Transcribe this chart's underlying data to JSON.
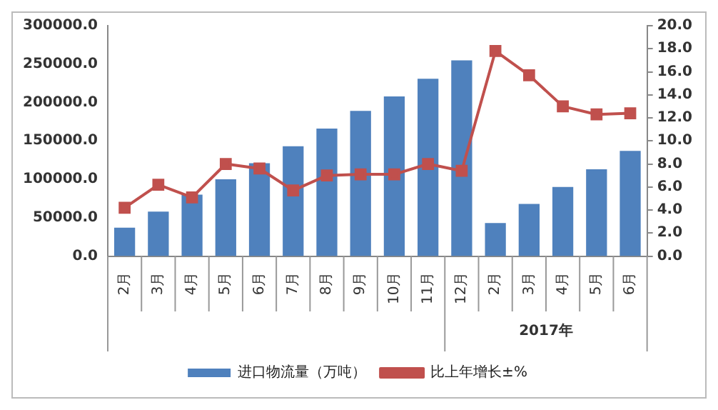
{
  "chart_data": {
    "type": "bar",
    "categories": [
      "2月",
      "3月",
      "4月",
      "5月",
      "6月",
      "7月",
      "8月",
      "9月",
      "10月",
      "11月",
      "12月",
      "2月",
      "3月",
      "4月",
      "5月",
      "6月"
    ],
    "series": [
      {
        "name": "进口物流量（万吨）",
        "color": "#4f81bd",
        "values": [
          37000,
          58000,
          80000,
          100000,
          121000,
          143000,
          166000,
          189000,
          208000,
          231000,
          255000,
          43000,
          68000,
          90000,
          113000,
          137000
        ]
      },
      {
        "name": "比上年增长±%",
        "type": "line",
        "axis": "y2",
        "color": "#c0504d",
        "marker": "square",
        "values": [
          4.2,
          6.2,
          5.1,
          8.0,
          7.6,
          5.7,
          7.0,
          7.1,
          7.1,
          8.0,
          7.4,
          17.8,
          15.7,
          13.0,
          12.3,
          12.4
        ]
      }
    ],
    "ylim": [
      0,
      300000
    ],
    "yticks": [
      {
        "value": 0,
        "label": "0.0"
      },
      {
        "value": 50000,
        "label": "50000.0"
      },
      {
        "value": 100000,
        "label": "100000.0"
      },
      {
        "value": 150000,
        "label": "150000.0"
      },
      {
        "value": 200000,
        "label": "200000.0"
      },
      {
        "value": 250000,
        "label": "250000.0"
      },
      {
        "value": 300000,
        "label": "300000.0"
      }
    ],
    "y2lim": [
      0,
      20
    ],
    "y2ticks": [
      {
        "value": 0,
        "label": "0.0"
      },
      {
        "value": 2,
        "label": "2.0"
      },
      {
        "value": 4,
        "label": "4.0"
      },
      {
        "value": 6,
        "label": "6.0"
      },
      {
        "value": 8,
        "label": "8.0"
      },
      {
        "value": 10,
        "label": "10.0"
      },
      {
        "value": 12,
        "label": "12.0"
      },
      {
        "value": 14,
        "label": "14.0"
      },
      {
        "value": 16,
        "label": "16.0"
      },
      {
        "value": 18,
        "label": "18.0"
      },
      {
        "value": 20,
        "label": "20.0"
      }
    ],
    "annotations": [
      "2017年"
    ],
    "grid": false,
    "legend": "bottom"
  }
}
